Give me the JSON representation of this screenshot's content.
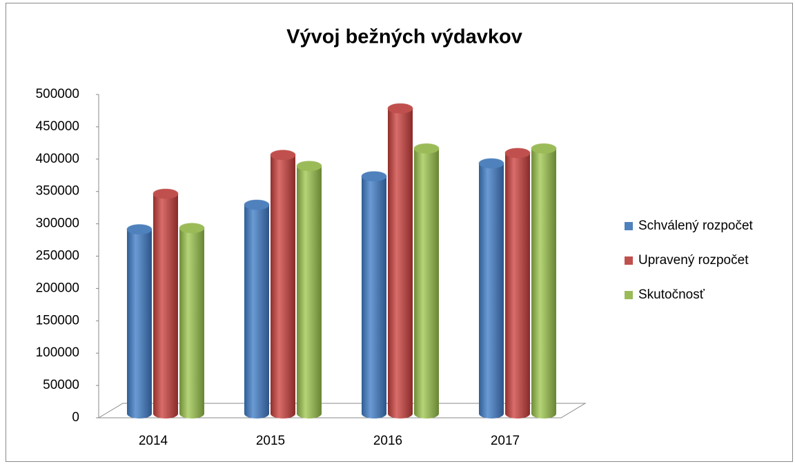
{
  "chart_data": {
    "type": "bar3d",
    "title": "Vývoj bežných výdavkov",
    "categories": [
      "2014",
      "2015",
      "2016",
      "2017"
    ],
    "series": [
      {
        "name": "Schválený rozpočet",
        "color": "#4f81bd",
        "values": [
          285000,
          323000,
          367000,
          387000
        ]
      },
      {
        "name": "Upravený rozpočet",
        "color": "#c0504d",
        "values": [
          340000,
          400000,
          472000,
          403000
        ]
      },
      {
        "name": "Skutočnosť",
        "color": "#9bbb59",
        "values": [
          287000,
          383000,
          410000,
          410000
        ]
      }
    ],
    "ylim": [
      0,
      500000
    ],
    "yticks": [
      0,
      50000,
      100000,
      150000,
      200000,
      250000,
      300000,
      350000,
      400000,
      450000,
      500000
    ],
    "legend": "right"
  }
}
